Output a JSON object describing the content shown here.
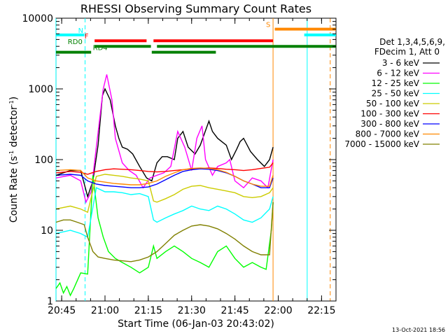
{
  "chart_data": {
    "type": "line",
    "title": "RHESSI Observing Summary Count Rates",
    "xlabel": "Start Time (06-Jan-03 20:43:02)",
    "ylabel": "Count Rate (s",
    "ylabel_sup1": "-1",
    "ylabel_mid": " detector",
    "ylabel_sup2": "-1",
    "ylabel_end": ")",
    "x_range_min": [
      20.7172,
      22.3333
    ],
    "y_range": [
      1,
      10000
    ],
    "y_scale": "log",
    "xticks": [
      {
        "v": 20.75,
        "label": "20:45"
      },
      {
        "v": 21.0,
        "label": "21:00"
      },
      {
        "v": 21.25,
        "label": "21:15"
      },
      {
        "v": 21.5,
        "label": "21:30"
      },
      {
        "v": 21.75,
        "label": "21:45"
      },
      {
        "v": 22.0,
        "label": "22:00"
      },
      {
        "v": 22.25,
        "label": "22:15"
      }
    ],
    "yticks": [
      {
        "v": 1,
        "label": "1"
      },
      {
        "v": 10,
        "label": "10"
      },
      {
        "v": 100,
        "label": "100"
      },
      {
        "v": 1000,
        "label": "1000"
      },
      {
        "v": 10000,
        "label": "10000"
      }
    ],
    "legend_header": [
      "Det 1,3,4,5,6,9,",
      "FDecim 1, Att 0"
    ],
    "series": [
      {
        "name": "3 - 6 keV",
        "color": "#000000",
        "x": [
          20.717,
          20.8,
          20.86,
          20.9,
          20.93,
          20.96,
          20.985,
          21.0,
          21.03,
          21.06,
          21.08,
          21.1,
          21.13,
          21.16,
          21.2,
          21.24,
          21.27,
          21.3,
          21.33,
          21.36,
          21.4,
          21.42,
          21.45,
          21.48,
          21.52,
          21.55,
          21.6,
          21.62,
          21.65,
          21.7,
          21.73,
          21.76,
          21.78,
          21.8,
          21.84,
          21.88,
          21.92,
          21.95,
          21.97
        ],
        "y": [
          60,
          70,
          70,
          30,
          50,
          160,
          800,
          1000,
          700,
          300,
          200,
          150,
          140,
          120,
          80,
          55,
          50,
          90,
          110,
          110,
          100,
          200,
          250,
          150,
          120,
          160,
          350,
          250,
          200,
          160,
          100,
          140,
          180,
          200,
          130,
          100,
          80,
          100,
          150
        ]
      },
      {
        "name": "6 - 12 keV",
        "color": "#ff00ff",
        "x": [
          20.717,
          20.8,
          20.86,
          20.89,
          20.92,
          20.95,
          20.99,
          21.01,
          21.04,
          21.06,
          21.1,
          21.14,
          21.18,
          21.22,
          21.26,
          21.3,
          21.34,
          21.38,
          21.42,
          21.46,
          21.5,
          21.53,
          21.56,
          21.58,
          21.62,
          21.65,
          21.7,
          21.72,
          21.75,
          21.8,
          21.85,
          21.9,
          21.94,
          21.97
        ],
        "y": [
          55,
          60,
          50,
          25,
          35,
          150,
          1000,
          1600,
          700,
          200,
          90,
          70,
          60,
          40,
          55,
          60,
          65,
          80,
          250,
          150,
          70,
          200,
          300,
          100,
          60,
          80,
          90,
          100,
          50,
          40,
          55,
          50,
          40,
          100
        ]
      },
      {
        "name": "12 - 25 keV",
        "color": "#00ff00",
        "x": [
          20.717,
          20.74,
          20.76,
          20.78,
          20.8,
          20.82,
          20.86,
          20.9,
          20.93,
          20.96,
          20.99,
          21.02,
          21.06,
          21.1,
          21.15,
          21.2,
          21.25,
          21.28,
          21.3,
          21.35,
          21.4,
          21.45,
          21.5,
          21.55,
          21.6,
          21.65,
          21.7,
          21.75,
          21.8,
          21.85,
          21.9,
          21.93,
          21.96,
          21.97
        ],
        "y": [
          1.5,
          1.8,
          1.3,
          1.6,
          1.2,
          1.5,
          2.5,
          2.4,
          60,
          15,
          8,
          5,
          4,
          3.5,
          3,
          2.5,
          3,
          6,
          4,
          5,
          6,
          5,
          4,
          3.5,
          3,
          5,
          6,
          4,
          3,
          3.5,
          3,
          2.8,
          10,
          25
        ]
      },
      {
        "name": "25 - 50 keV",
        "color": "#00ffff",
        "x": [
          20.717,
          20.8,
          20.86,
          20.9,
          20.95,
          21.0,
          21.05,
          21.1,
          21.15,
          21.2,
          21.25,
          21.28,
          21.3,
          21.35,
          21.4,
          21.45,
          21.5,
          21.55,
          21.6,
          21.65,
          21.7,
          21.75,
          21.8,
          21.85,
          21.9,
          21.95,
          21.97
        ],
        "y": [
          9,
          10,
          9,
          8,
          40,
          35,
          35,
          34,
          32,
          33,
          30,
          14,
          13,
          15,
          17,
          19,
          22,
          20,
          19,
          22,
          20,
          17,
          14,
          13,
          15,
          20,
          30
        ]
      },
      {
        "name": "50 - 100 keV",
        "color": "#cccc00",
        "x": [
          20.717,
          20.8,
          20.86,
          20.9,
          20.95,
          21.0,
          21.05,
          21.1,
          21.15,
          21.2,
          21.25,
          21.28,
          21.3,
          21.35,
          21.4,
          21.45,
          21.5,
          21.55,
          21.6,
          21.65,
          21.7,
          21.75,
          21.8,
          21.85,
          21.9,
          21.95,
          21.97
        ],
        "y": [
          20,
          22,
          20,
          18,
          58,
          62,
          60,
          58,
          55,
          53,
          50,
          26,
          25,
          28,
          32,
          38,
          42,
          43,
          40,
          38,
          36,
          34,
          30,
          29,
          30,
          34,
          40
        ]
      },
      {
        "name": "100 - 300 keV",
        "color": "#ff0000",
        "x": [
          20.717,
          20.8,
          20.86,
          20.9,
          20.95,
          21.0,
          21.05,
          21.1,
          21.15,
          21.2,
          21.25,
          21.3,
          21.35,
          21.4,
          21.45,
          21.5,
          21.55,
          21.6,
          21.65,
          21.7,
          21.75,
          21.8,
          21.85,
          21.9,
          21.95,
          21.97
        ],
        "y": [
          65,
          68,
          66,
          62,
          68,
          72,
          74,
          73,
          72,
          70,
          68,
          67,
          68,
          70,
          72,
          74,
          75,
          76,
          75,
          73,
          72,
          70,
          72,
          75,
          78,
          90
        ]
      },
      {
        "name": "300 - 800 keV",
        "color": "#0000ff",
        "x": [
          20.717,
          20.8,
          20.86,
          20.9,
          20.95,
          21.0,
          21.05,
          21.1,
          21.15,
          21.2,
          21.25,
          21.3,
          21.35,
          21.4,
          21.45,
          21.5,
          21.55,
          21.6,
          21.65,
          21.7,
          21.75,
          21.8,
          21.85,
          21.9,
          21.95,
          21.97
        ],
        "y": [
          60,
          62,
          60,
          50,
          45,
          43,
          42,
          41,
          40,
          40,
          41,
          45,
          52,
          60,
          68,
          72,
          74,
          73,
          70,
          65,
          58,
          50,
          45,
          40,
          40,
          55
        ]
      },
      {
        "name": "800 - 7000 keV",
        "color": "#ff8800",
        "x": [
          20.717,
          20.8,
          20.86,
          20.9,
          20.95,
          21.0,
          21.05,
          21.1,
          21.15,
          21.2,
          21.25,
          21.3,
          21.35,
          21.4,
          21.45,
          21.5,
          21.55,
          21.6,
          21.65,
          21.7,
          21.75,
          21.8,
          21.85,
          21.9,
          21.95,
          21.97
        ],
        "y": [
          70,
          72,
          70,
          55,
          50,
          48,
          46,
          45,
          44,
          44,
          46,
          50,
          58,
          65,
          72,
          75,
          76,
          75,
          72,
          66,
          58,
          50,
          45,
          42,
          42,
          60
        ]
      },
      {
        "name": "7000 - 15000 keV",
        "color": "#808000",
        "x": [
          20.717,
          20.76,
          20.8,
          20.84,
          20.88,
          20.9,
          20.93,
          20.96,
          21.0,
          21.05,
          21.1,
          21.15,
          21.2,
          21.25,
          21.3,
          21.35,
          21.4,
          21.45,
          21.5,
          21.55,
          21.6,
          21.65,
          21.7,
          21.75,
          21.8,
          21.85,
          21.9,
          21.95,
          21.97
        ],
        "y": [
          13,
          14,
          14,
          13,
          12,
          8,
          5,
          4.2,
          4,
          3.8,
          3.7,
          3.6,
          3.8,
          4.2,
          5,
          6.5,
          8.5,
          10,
          11.5,
          12,
          11.5,
          10.5,
          9,
          7.5,
          6,
          5,
          4.5,
          4.5,
          25
        ]
      }
    ],
    "flags": [
      {
        "label": "N",
        "color": "#00ffff",
        "y": 5800,
        "segments": [
          [
            20.717,
            20.88
          ]
        ],
        "label_at": 20.875,
        "label_side": "right"
      },
      {
        "label": "F",
        "color": "#ff0000",
        "y": 4800,
        "segments": [
          [
            20.94,
            21.24
          ],
          [
            21.28,
            21.97
          ]
        ],
        "label_at": 20.905,
        "label_side": "right"
      },
      {
        "label": "RD0",
        "color": "#008000",
        "y": 4000,
        "segments": [
          [
            20.94,
            21.265
          ],
          [
            21.3,
            22.333
          ]
        ],
        "label_at": 20.87,
        "label_side": "right"
      },
      {
        "label": "RD4",
        "color": "#008000",
        "y": 3300,
        "segments": [
          [
            20.717,
            20.92
          ],
          [
            21.27,
            21.64
          ]
        ],
        "label_at": 20.93,
        "label_side": "left"
      },
      {
        "label": "S",
        "color": "#ff8800",
        "y": 7000,
        "segments": [
          [
            21.98,
            22.333
          ]
        ],
        "label_at": 21.955,
        "label_side": "right"
      },
      {
        "label": "",
        "color": "#00ffff",
        "y": 5800,
        "segments": [
          [
            22.15,
            22.333
          ]
        ],
        "label_at": 22.15,
        "label_side": "right"
      }
    ],
    "vlines": [
      {
        "x": 20.717,
        "color": "#00ffff",
        "dash": false
      },
      {
        "x": 20.885,
        "color": "#00ffff",
        "dash": true
      },
      {
        "x": 21.97,
        "color": "#ff8800",
        "dash": false
      },
      {
        "x": 22.167,
        "color": "#00ffff",
        "dash": false
      },
      {
        "x": 22.3,
        "color": "#ff8800",
        "dash": true
      }
    ],
    "grid": false
  },
  "footer": {
    "date": "13-Oct-2021 18:56"
  }
}
